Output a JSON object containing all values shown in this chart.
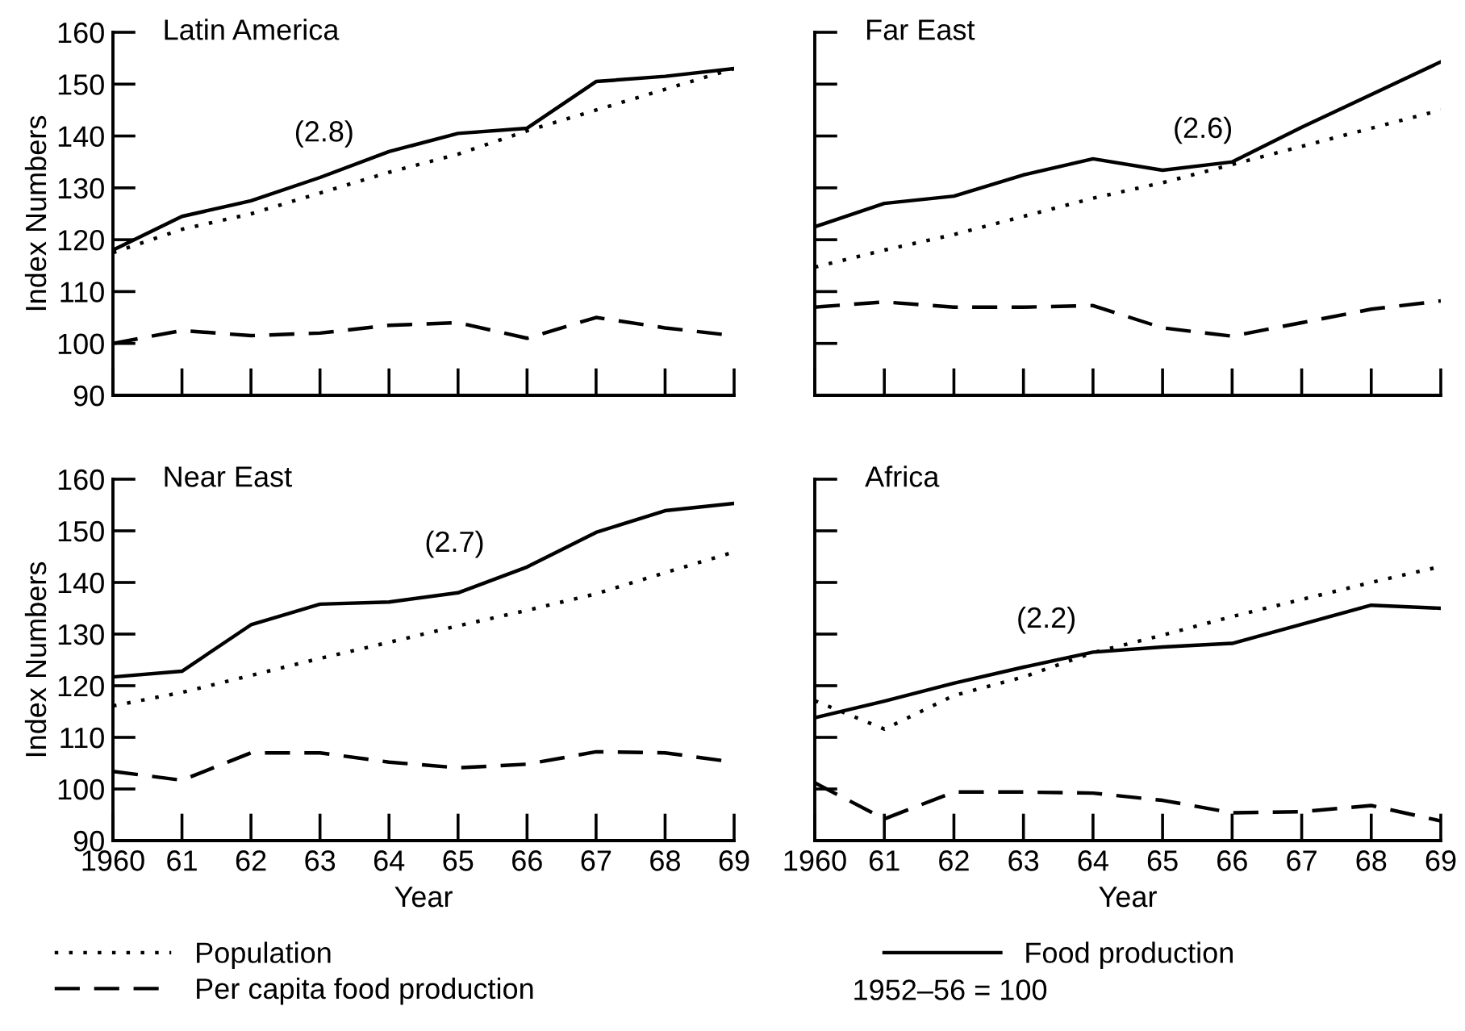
{
  "chart_data": [
    {
      "type": "line",
      "title": "Latin America",
      "ylabel": "Index Numbers",
      "x": [
        1960,
        1961,
        1962,
        1963,
        1964,
        1965,
        1966,
        1967,
        1968,
        1969
      ],
      "xlim": [
        1960,
        1969
      ],
      "xticks": [
        {
          "value": 1960,
          "label": null
        },
        {
          "value": 1961,
          "label": null
        },
        {
          "value": 1962,
          "label": null
        },
        {
          "value": 1963,
          "label": null
        },
        {
          "value": 1964,
          "label": null
        },
        {
          "value": 1965,
          "label": null
        },
        {
          "value": 1966,
          "label": null
        },
        {
          "value": 1967,
          "label": null
        },
        {
          "value": 1968,
          "label": null
        },
        {
          "value": 1969,
          "label": null
        }
      ],
      "ylim": [
        90,
        160
      ],
      "yticks": [
        90,
        100,
        110,
        120,
        130,
        140,
        150,
        160
      ],
      "tick_labels": "y",
      "grid": false,
      "legend": false,
      "series": [
        {
          "color": "#000000",
          "line_style": "solid",
          "values": [
            118,
            124.5,
            127.5,
            132,
            137,
            140.5,
            141.5,
            150.5,
            151.5,
            153
          ]
        },
        {
          "color": "#000000",
          "line_style": "dotted",
          "values": [
            117.5,
            122,
            125,
            129,
            133,
            136.5,
            141,
            145,
            149,
            153
          ]
        },
        {
          "color": "#000000",
          "line_style": "dashed",
          "values": [
            100,
            102.5,
            101.5,
            102,
            103.5,
            104,
            101,
            105,
            103,
            101.5
          ]
        }
      ],
      "annotations": [
        "(2.8)"
      ]
    },
    {
      "type": "line",
      "title": "Far East",
      "x": [
        1960,
        1961,
        1962,
        1963,
        1964,
        1965,
        1966,
        1967,
        1968,
        1969
      ],
      "xlim": [
        1960,
        1969
      ],
      "xticks": [
        {
          "value": 1960,
          "label": null
        },
        {
          "value": 1961,
          "label": null
        },
        {
          "value": 1962,
          "label": null
        },
        {
          "value": 1963,
          "label": null
        },
        {
          "value": 1964,
          "label": null
        },
        {
          "value": 1965,
          "label": null
        },
        {
          "value": 1966,
          "label": null
        },
        {
          "value": 1967,
          "label": null
        },
        {
          "value": 1968,
          "label": null
        },
        {
          "value": 1969,
          "label": null
        }
      ],
      "ylim": [
        90,
        160
      ],
      "yticks": [
        90,
        100,
        110,
        120,
        130,
        140,
        150,
        160
      ],
      "tick_labels": false,
      "grid": false,
      "legend": false,
      "series": [
        {
          "color": "#000000",
          "line_style": "solid",
          "values": [
            122.5,
            127,
            128.4,
            132.5,
            135.6,
            133.4,
            135,
            141.7,
            148,
            154.3
          ]
        },
        {
          "color": "#000000",
          "line_style": "dotted",
          "values": [
            114.7,
            118,
            121,
            124.5,
            128,
            131,
            134.5,
            138,
            141.5,
            145
          ]
        },
        {
          "color": "#000000",
          "line_style": "dashed",
          "values": [
            107,
            108,
            107,
            107,
            107.3,
            103,
            101.4,
            104,
            106.6,
            108.2
          ]
        }
      ],
      "annotations": [
        "(2.6)"
      ]
    },
    {
      "type": "line",
      "title": "Near East",
      "xlabel": "Year",
      "ylabel": "Index Numbers",
      "x": [
        1960,
        1961,
        1962,
        1963,
        1964,
        1965,
        1966,
        1967,
        1968,
        1969
      ],
      "xlim": [
        1960,
        1969
      ],
      "xticks": [
        {
          "value": 1960,
          "label": "1960"
        },
        {
          "value": 1961,
          "label": "61"
        },
        {
          "value": 1962,
          "label": "62"
        },
        {
          "value": 1963,
          "label": "63"
        },
        {
          "value": 1964,
          "label": "64"
        },
        {
          "value": 1965,
          "label": "65"
        },
        {
          "value": 1966,
          "label": "66"
        },
        {
          "value": 1967,
          "label": "67"
        },
        {
          "value": 1968,
          "label": "68"
        },
        {
          "value": 1969,
          "label": "69"
        }
      ],
      "ylim": [
        90,
        160
      ],
      "yticks": [
        90,
        100,
        110,
        120,
        130,
        140,
        150,
        160
      ],
      "grid": false,
      "legend": "bottom",
      "series": [
        {
          "name": "Population",
          "color": "#000000",
          "line_style": "dotted",
          "values": [
            116.1,
            118.7,
            122,
            125.3,
            128.4,
            131.6,
            134.6,
            137.8,
            141.9,
            145.9
          ]
        },
        {
          "name": "Per capita food production",
          "color": "#000000",
          "line_style": "dashed",
          "values": [
            103.4,
            101.7,
            107,
            107,
            105.2,
            104.1,
            104.8,
            107.2,
            107,
            105.2
          ]
        },
        {
          "name": "Food production",
          "color": "#000000",
          "line_style": "solid",
          "values": [
            121.7,
            122.8,
            131.8,
            135.8,
            136.2,
            138,
            143,
            149.7,
            153.9,
            155.3
          ]
        }
      ],
      "annotations": [
        "(2.7)"
      ]
    },
    {
      "type": "line",
      "title": "Africa",
      "xlabel": "Year",
      "x": [
        1960,
        1961,
        1962,
        1963,
        1964,
        1965,
        1966,
        1967,
        1968,
        1969
      ],
      "xlim": [
        1960,
        1969
      ],
      "xticks": [
        {
          "value": 1960,
          "label": "1960"
        },
        {
          "value": 1961,
          "label": "61"
        },
        {
          "value": 1962,
          "label": "62"
        },
        {
          "value": 1963,
          "label": "63"
        },
        {
          "value": 1964,
          "label": "64"
        },
        {
          "value": 1965,
          "label": "65"
        },
        {
          "value": 1966,
          "label": "66"
        },
        {
          "value": 1967,
          "label": "67"
        },
        {
          "value": 1968,
          "label": "68"
        },
        {
          "value": 1969,
          "label": "69"
        }
      ],
      "ylim": [
        90,
        160
      ],
      "yticks": [
        90,
        100,
        110,
        120,
        130,
        140,
        150,
        160
      ],
      "tick_labels": "x",
      "grid": false,
      "legend": false,
      "series": [
        {
          "color": "#000000",
          "line_style": "solid",
          "values": [
            113.8,
            117,
            120.5,
            123.6,
            126.5,
            127.5,
            128.2,
            131.9,
            135.6,
            135
          ]
        },
        {
          "color": "#000000",
          "line_style": "dotted",
          "values": [
            117.1,
            111.6,
            118.1,
            121.7,
            126.4,
            129.8,
            133.4,
            136.7,
            140,
            143.1
          ]
        },
        {
          "color": "#000000",
          "line_style": "dashed",
          "values": [
            101.2,
            94.2,
            99.4,
            99.4,
            99.2,
            97.8,
            95.4,
            95.6,
            96.8,
            93.8
          ]
        }
      ],
      "annotations": [
        "(2.2)",
        "1952–56 = 100"
      ]
    }
  ]
}
